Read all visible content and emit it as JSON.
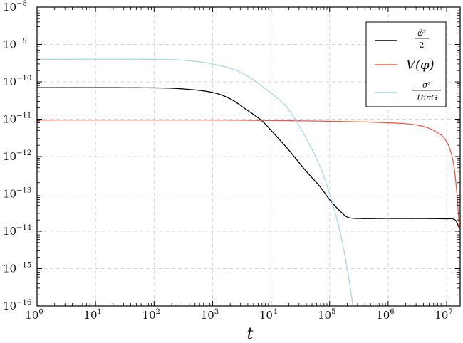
{
  "chart_data": {
    "type": "line",
    "title": "",
    "xlabel": "t",
    "ylabel": "",
    "x_scale": "log",
    "y_scale": "log",
    "xlim": [
      1,
      17000000
    ],
    "ylim": [
      1e-16,
      1e-08
    ],
    "grid": true,
    "legend_position": "top-right",
    "x_ticks": [
      {
        "base": "10",
        "exp": "0",
        "value": 1
      },
      {
        "base": "10",
        "exp": "1",
        "value": 10
      },
      {
        "base": "10",
        "exp": "2",
        "value": 100
      },
      {
        "base": "10",
        "exp": "3",
        "value": 1000
      },
      {
        "base": "10",
        "exp": "4",
        "value": 10000
      },
      {
        "base": "10",
        "exp": "5",
        "value": 100000
      },
      {
        "base": "10",
        "exp": "6",
        "value": 1000000
      },
      {
        "base": "10",
        "exp": "7",
        "value": 10000000
      }
    ],
    "y_ticks": [
      {
        "base": "10",
        "exp": "−8",
        "value": 1e-08
      },
      {
        "base": "10",
        "exp": "−9",
        "value": 1e-09
      },
      {
        "base": "10",
        "exp": "−10",
        "value": 1e-10
      },
      {
        "base": "10",
        "exp": "−11",
        "value": 1e-11
      },
      {
        "base": "10",
        "exp": "−12",
        "value": 1e-12
      },
      {
        "base": "10",
        "exp": "−13",
        "value": 1e-13
      },
      {
        "base": "10",
        "exp": "−14",
        "value": 1e-14
      },
      {
        "base": "10",
        "exp": "−15",
        "value": 1e-15
      },
      {
        "base": "10",
        "exp": "−16",
        "value": 1e-16
      }
    ],
    "series": [
      {
        "legend_label": "φ̇²/2",
        "color": "#000000",
        "points": [
          [
            1,
            7e-11
          ],
          [
            100,
            6.9e-11
          ],
          [
            300,
            6.5e-11
          ],
          [
            1000,
            5.2e-11
          ],
          [
            2000,
            3.5e-11
          ],
          [
            4000,
            1.7e-11
          ],
          [
            7000,
            9e-12
          ],
          [
            10000,
            5e-12
          ],
          [
            20000,
            1.5e-12
          ],
          [
            40000,
            4e-13
          ],
          [
            70000,
            1.5e-13
          ],
          [
            100000,
            7e-14
          ],
          [
            150000,
            3.5e-14
          ],
          [
            200000,
            2.4e-14
          ],
          [
            300000,
            2.2e-14
          ],
          [
            1000000,
            2.2e-14
          ],
          [
            10000000,
            2.15e-14
          ],
          [
            14000000,
            2e-14
          ],
          [
            16500000,
            1.2e-14
          ]
        ]
      },
      {
        "legend_label": "V(φ)",
        "color": "#f05a45",
        "points": [
          [
            1,
            9.5e-12
          ],
          [
            1000,
            9.5e-12
          ],
          [
            10000,
            9.2e-12
          ],
          [
            100000,
            8.8e-12
          ],
          [
            1000000,
            8e-12
          ],
          [
            3000000,
            7e-12
          ],
          [
            6000000,
            5e-12
          ],
          [
            10000000,
            2.5e-12
          ],
          [
            13000000,
            7e-13
          ],
          [
            15000000,
            1e-13
          ],
          [
            16500000,
            1.2e-14
          ]
        ]
      },
      {
        "legend_label": "σ²/16πG",
        "color": "#a8d8ea",
        "points": [
          [
            1,
            4e-10
          ],
          [
            100,
            4e-10
          ],
          [
            300,
            3.8e-10
          ],
          [
            1000,
            3e-10
          ],
          [
            3000,
            1.8e-10
          ],
          [
            10000,
            5e-11
          ],
          [
            20000,
            1.8e-11
          ],
          [
            40000,
            3e-12
          ],
          [
            70000,
            5e-13
          ],
          [
            100000,
            1e-13
          ],
          [
            150000,
            1e-14
          ],
          [
            200000,
            1e-15
          ],
          [
            250000,
            1e-16
          ]
        ]
      }
    ]
  }
}
